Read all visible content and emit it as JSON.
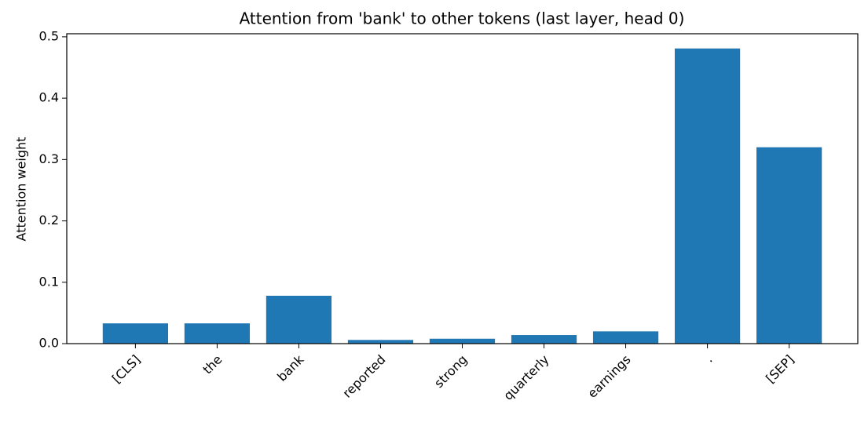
{
  "chart_data": {
    "type": "bar",
    "title": "Attention from 'bank' to other tokens (last layer, head 0)",
    "y_label": "Attention weight",
    "categories": [
      "[CLS]",
      "the",
      "bank",
      "reported",
      "strong",
      "quarterly",
      "earnings",
      ".",
      "[SEP]"
    ],
    "values": [
      0.033,
      0.033,
      0.078,
      0.006,
      0.008,
      0.014,
      0.02,
      0.481,
      0.32
    ],
    "color": "#1f77b4",
    "ylim": [
      0,
      0.505
    ],
    "yticks": [
      {
        "value": 0,
        "label": "0.0"
      },
      0.1,
      0.2,
      0.3,
      0.4,
      0.5
    ]
  }
}
